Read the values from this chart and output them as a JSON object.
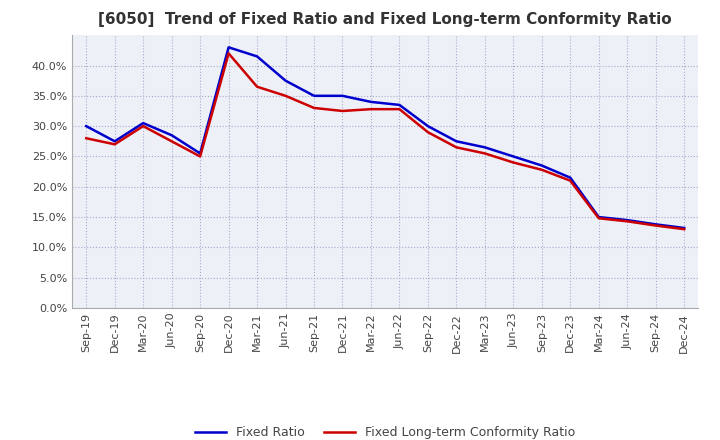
{
  "title": "[6050]  Trend of Fixed Ratio and Fixed Long-term Conformity Ratio",
  "x_labels": [
    "Sep-19",
    "Dec-19",
    "Mar-20",
    "Jun-20",
    "Sep-20",
    "Dec-20",
    "Mar-21",
    "Jun-21",
    "Sep-21",
    "Dec-21",
    "Mar-22",
    "Jun-22",
    "Sep-22",
    "Dec-22",
    "Mar-23",
    "Jun-23",
    "Sep-23",
    "Dec-23",
    "Mar-24",
    "Jun-24",
    "Sep-24",
    "Dec-24"
  ],
  "fixed_ratio": [
    0.3,
    0.275,
    0.305,
    0.285,
    0.255,
    0.43,
    0.415,
    0.375,
    0.35,
    0.35,
    0.34,
    0.335,
    0.3,
    0.275,
    0.265,
    0.25,
    0.235,
    0.215,
    0.15,
    0.145,
    0.138,
    0.132
  ],
  "fixed_lt_ratio": [
    0.28,
    0.27,
    0.3,
    0.275,
    0.25,
    0.42,
    0.365,
    0.35,
    0.33,
    0.325,
    0.328,
    0.328,
    0.29,
    0.265,
    0.255,
    0.24,
    0.228,
    0.21,
    0.148,
    0.143,
    0.136,
    0.13
  ],
  "fixed_ratio_color": "#0000cc",
  "fixed_lt_ratio_color": "#cc0000",
  "ylim": [
    0.0,
    0.45
  ],
  "yticks": [
    0.0,
    0.05,
    0.1,
    0.15,
    0.2,
    0.25,
    0.3,
    0.35,
    0.4
  ],
  "background_color": "#ffffff",
  "plot_bg_color": "#eef0f8",
  "grid_color": "#aaaacc",
  "title_fontsize": 11,
  "legend_fontsize": 9,
  "tick_fontsize": 8,
  "line_width": 1.8
}
